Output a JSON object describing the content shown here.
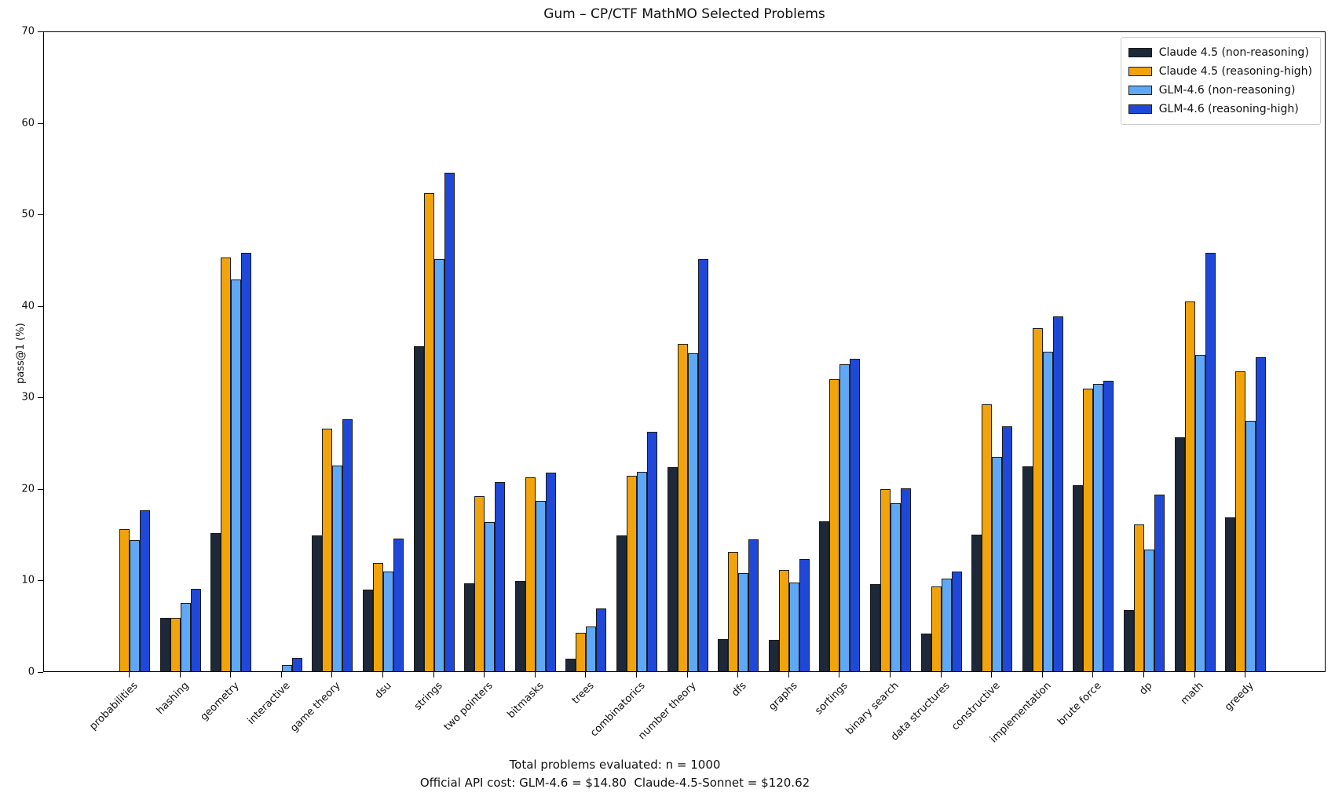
{
  "chart_data": {
    "type": "bar",
    "title": "Gum – CP/CTF MathMO Selected Problems",
    "ylabel": "pass@1 (%)",
    "xlabel": "",
    "ylim": [
      0,
      70
    ],
    "yticks": [
      0,
      10,
      20,
      30,
      40,
      50,
      60,
      70
    ],
    "grid": false,
    "legend_position": "upper right",
    "bar_edge_color": "#1a1a1a",
    "categories": [
      "probabilities",
      "hashing",
      "geometry",
      "interactive",
      "game theory",
      "dsu",
      "strings",
      "two pointers",
      "bitmasks",
      "trees",
      "combinatorics",
      "number theory",
      "dfs",
      "graphs",
      "sortings",
      "binary search",
      "data structures",
      "constructive",
      "implementation",
      "brute force",
      "dp",
      "math",
      "greedy"
    ],
    "series": [
      {
        "name": "Claude 4.5 (non-reasoning)",
        "color": "#1d2839",
        "values": [
          0,
          5.8,
          15.1,
          0,
          14.8,
          8.9,
          35.5,
          9.6,
          9.9,
          1.4,
          14.8,
          22.3,
          3.5,
          3.4,
          16.4,
          9.5,
          4.1,
          14.9,
          22.4,
          20.3,
          6.7,
          25.6,
          16.8
        ]
      },
      {
        "name": "Claude 4.5 (reasoning-high)",
        "color": "#f0a30a",
        "values": [
          15.5,
          5.8,
          45.2,
          0,
          26.5,
          11.8,
          52.2,
          19.1,
          21.2,
          4.2,
          21.4,
          35.8,
          13.0,
          11.1,
          31.9,
          19.9,
          9.3,
          29.2,
          37.5,
          30.9,
          16.0,
          40.4,
          32.8
        ]
      },
      {
        "name": "GLM-4.6 (non-reasoning)",
        "color": "#5fa8f5",
        "values": [
          14.3,
          7.5,
          42.8,
          0.7,
          22.5,
          10.9,
          45.0,
          16.3,
          18.6,
          4.9,
          21.8,
          34.7,
          10.7,
          9.7,
          33.5,
          18.4,
          10.1,
          23.4,
          34.9,
          31.4,
          13.3,
          34.6,
          27.4
        ]
      },
      {
        "name": "GLM-4.6 (reasoning-high)",
        "color": "#1f48d9",
        "values": [
          17.6,
          9.0,
          45.7,
          1.5,
          27.5,
          14.5,
          54.5,
          20.7,
          21.7,
          6.9,
          26.2,
          45.0,
          14.4,
          12.3,
          34.1,
          20.0,
          10.9,
          26.8,
          38.8,
          31.7,
          19.3,
          45.7,
          34.3
        ]
      }
    ]
  },
  "footer": {
    "line1": "Total problems evaluated: n = 1000",
    "line2": "Official API cost: GLM-4.6 = $14.80  Claude-4.5-Sonnet = $120.62"
  }
}
